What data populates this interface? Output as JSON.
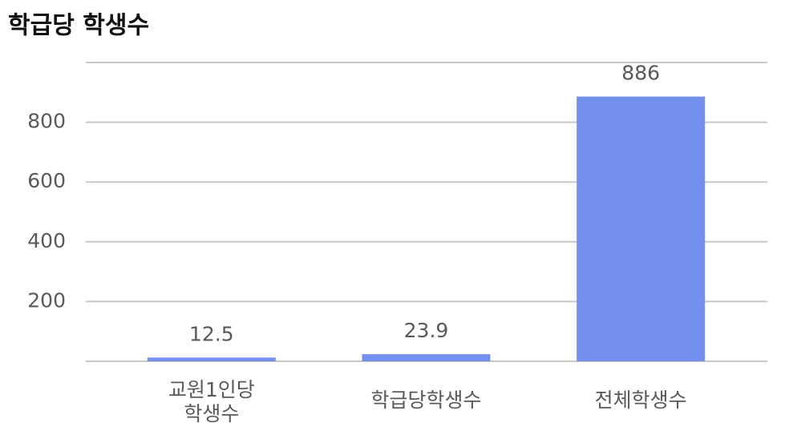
{
  "chart_data": {
    "type": "bar",
    "title": "학급당 학생수",
    "categories": [
      "교원1인당 학생수",
      "학급당학생수",
      "전체학생수"
    ],
    "values": [
      12.5,
      23.9,
      886
    ],
    "color": "#7390ee",
    "ylim": [
      0,
      1000
    ],
    "yticks": [
      200,
      400,
      600,
      800
    ],
    "grid": true
  }
}
